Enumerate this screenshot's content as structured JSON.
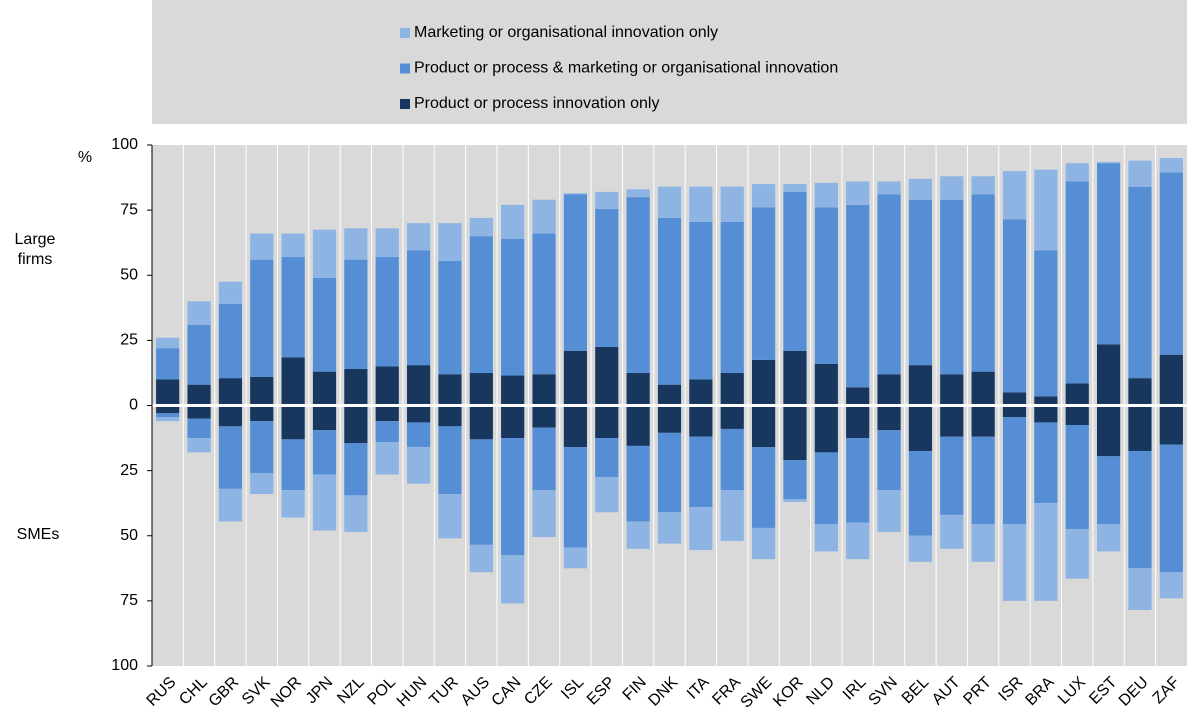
{
  "chart_data": {
    "type": "diverging_stacked_bar",
    "y_unit": "%",
    "upper_label": "Large firms",
    "lower_label": "SMEs",
    "categories": [
      "RUS",
      "CHL",
      "GBR",
      "SVK",
      "NOR",
      "JPN",
      "NZL",
      "POL",
      "HUN",
      "TUR",
      "AUS",
      "CAN",
      "CZE",
      "ISL",
      "ESP",
      "FIN",
      "DNK",
      "ITA",
      "FRA",
      "SWE",
      "KOR",
      "NLD",
      "IRL",
      "SVN",
      "BEL",
      "AUT",
      "PRT",
      "ISR",
      "BRA",
      "LUX",
      "EST",
      "DEU",
      "ZAF"
    ],
    "series": [
      {
        "name": "Product or process innovation only",
        "color": "#17375e",
        "values": [
          10,
          8,
          10.5,
          11,
          18.5,
          13,
          14,
          15,
          15.5,
          12,
          12.5,
          11.5,
          12,
          21,
          22.5,
          12.5,
          8,
          10,
          12.5,
          17.5,
          21,
          16,
          7,
          12,
          15.5,
          12,
          13,
          5,
          3.5,
          8.5,
          23.5,
          10.5,
          19.5
        ],
        "lower_values": [
          -3,
          -5,
          -8,
          -6,
          -13,
          -9.5,
          -14.5,
          -6,
          -6.5,
          -8,
          -13,
          -12.5,
          -8.5,
          -16,
          -12.5,
          -15.5,
          -10.5,
          -12,
          -9,
          -16,
          -21,
          -18,
          -12.5,
          -9.5,
          -17.5,
          -12,
          -12,
          -4.5,
          -6.5,
          -7.5,
          -19.5,
          -17.5,
          -15
        ]
      },
      {
        "name": "Product or process & marketing or organisational innovation",
        "color": "#558ed5",
        "values": [
          12,
          23,
          28.5,
          45,
          38.5,
          36,
          42,
          42,
          44,
          43.5,
          52.5,
          52.5,
          54,
          60,
          53,
          67.5,
          64,
          60.5,
          58,
          58.5,
          61,
          60,
          70,
          69,
          63.5,
          67,
          68,
          66.5,
          56,
          77.5,
          69.5,
          73.5,
          70
        ],
        "lower_values": [
          -1.5,
          -7.5,
          -24,
          -20,
          -19.5,
          -17,
          -20,
          -8,
          -9.5,
          -26,
          -40.5,
          -45,
          -24,
          -38.5,
          -15,
          -29,
          -30.5,
          -27,
          -23.5,
          -31,
          -15,
          -27.5,
          -32.5,
          -23,
          -32.5,
          -30,
          -33.5,
          -41,
          -31,
          -40,
          -26,
          -45,
          -49
        ]
      },
      {
        "name": "Marketing or organisational innovation only",
        "color": "#8db4e2",
        "values": [
          4,
          9,
          8.5,
          10,
          9,
          18.5,
          12,
          11,
          10.5,
          14.5,
          7,
          13,
          13,
          0.5,
          6.5,
          3,
          12,
          13.5,
          13.5,
          9,
          3,
          9.5,
          9,
          5,
          8,
          9,
          7,
          18.5,
          31,
          7,
          0.5,
          10,
          5.5
        ],
        "lower_values": [
          -1.5,
          -5.5,
          -12.5,
          -8,
          -10.5,
          -21.5,
          -14,
          -12.5,
          -14,
          -17,
          -10.5,
          -18.5,
          -18,
          -8,
          -13.5,
          -10.5,
          -12,
          -16.5,
          -19.5,
          -12,
          -1,
          -10.5,
          -14,
          -16,
          -10,
          -13,
          -14.5,
          -29.5,
          -37.5,
          -19,
          -10.5,
          -16,
          -10
        ]
      }
    ],
    "ylim": [
      -100,
      100
    ],
    "yticks": [
      100,
      75,
      50,
      25,
      0,
      {
        "value": -25,
        "label": "25"
      },
      {
        "value": -50,
        "label": "50"
      },
      {
        "value": -75,
        "label": "75"
      },
      {
        "value": -100,
        "label": "100"
      }
    ]
  }
}
